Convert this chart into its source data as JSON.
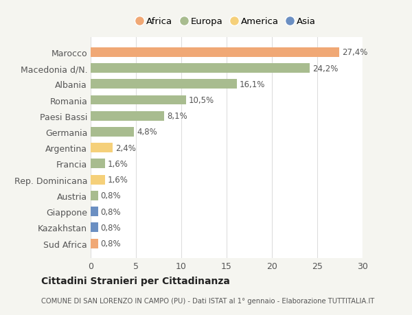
{
  "categories": [
    "Marocco",
    "Macedonia d/N.",
    "Albania",
    "Romania",
    "Paesi Bassi",
    "Germania",
    "Argentina",
    "Francia",
    "Rep. Dominicana",
    "Austria",
    "Giappone",
    "Kazakhstan",
    "Sud Africa"
  ],
  "values": [
    27.4,
    24.2,
    16.1,
    10.5,
    8.1,
    4.8,
    2.4,
    1.6,
    1.6,
    0.8,
    0.8,
    0.8,
    0.8
  ],
  "labels": [
    "27,4%",
    "24,2%",
    "16,1%",
    "10,5%",
    "8,1%",
    "4,8%",
    "2,4%",
    "1,6%",
    "1,6%",
    "0,8%",
    "0,8%",
    "0,8%",
    "0,8%"
  ],
  "colors": [
    "#f0a875",
    "#a8bc8f",
    "#a8bc8f",
    "#a8bc8f",
    "#a8bc8f",
    "#a8bc8f",
    "#f5d07a",
    "#a8bc8f",
    "#f5d07a",
    "#a8bc8f",
    "#6b8fc2",
    "#6b8fc2",
    "#f0a875"
  ],
  "legend": [
    {
      "label": "Africa",
      "color": "#f0a875"
    },
    {
      "label": "Europa",
      "color": "#a8bc8f"
    },
    {
      "label": "America",
      "color": "#f5d07a"
    },
    {
      "label": "Asia",
      "color": "#6b8fc2"
    }
  ],
  "xlim": [
    0,
    30
  ],
  "xticks": [
    0,
    5,
    10,
    15,
    20,
    25,
    30
  ],
  "title": "Cittadini Stranieri per Cittadinanza",
  "subtitle": "COMUNE DI SAN LORENZO IN CAMPO (PU) - Dati ISTAT al 1° gennaio - Elaborazione TUTTITALIA.IT",
  "bg_color": "#f5f5f0",
  "bar_bg_color": "#ffffff"
}
